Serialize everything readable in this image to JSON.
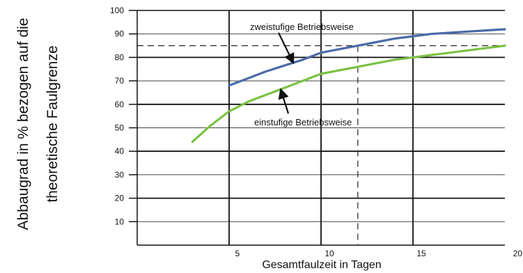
{
  "chart_data": {
    "type": "line",
    "title": "",
    "xlabel": "Gesamtfaulzeit in Tagen",
    "ylabel_lines": [
      "Abbaugrad in % bezogen auf die",
      "theoretische Faulgrenze"
    ],
    "xlim": [
      0,
      20
    ],
    "ylim": [
      0,
      100
    ],
    "x_ticks": [
      5,
      10,
      15,
      20
    ],
    "x_tick_labels": [
      "5",
      "10",
      "15",
      "20"
    ],
    "y_ticks": [
      10,
      20,
      30,
      40,
      50,
      60,
      70,
      80,
      90,
      100
    ],
    "y_tick_labels": [
      "10",
      "20",
      "30",
      "40",
      "50",
      "60",
      "70",
      "80",
      "90",
      "100"
    ],
    "grid": {
      "major_x": [
        5,
        10,
        15
      ],
      "major_y": [
        20,
        40,
        60,
        80
      ],
      "minor_y": [
        10,
        30,
        50,
        70,
        90
      ]
    },
    "reference_lines": [
      {
        "orientation": "horizontal",
        "value": 85,
        "style": "dashed"
      },
      {
        "orientation": "vertical",
        "value": 12,
        "style": "dashed"
      }
    ],
    "series": [
      {
        "name": "zweistufige Betriebsweise",
        "color": "#4a6aa8",
        "x": [
          5,
          6,
          7,
          8,
          9,
          10,
          11,
          12,
          13,
          14,
          15,
          16,
          17,
          18,
          19,
          20
        ],
        "y": [
          68,
          71,
          74,
          76.5,
          79,
          82,
          83.5,
          85,
          86.5,
          88,
          89,
          90,
          90.5,
          91,
          91.5,
          92
        ]
      },
      {
        "name": "einstufige Betriebsweise",
        "color": "#7ac143",
        "x": [
          3,
          4,
          5,
          6,
          7,
          8,
          9,
          10,
          11,
          12,
          13,
          14,
          15,
          16,
          17,
          18,
          19,
          20
        ],
        "y": [
          44,
          51,
          57,
          61,
          64,
          67,
          70,
          73,
          74.5,
          76,
          77.5,
          79,
          80,
          81,
          82,
          83,
          84,
          85
        ]
      }
    ],
    "annotations": [
      {
        "text": "zweistufige Betriebsweise",
        "points_to_x": 8.5,
        "points_to_y": 77.5
      },
      {
        "text": "einstufige Betriebsweise",
        "points_to_x": 7.8,
        "points_to_y": 66.5
      }
    ]
  }
}
